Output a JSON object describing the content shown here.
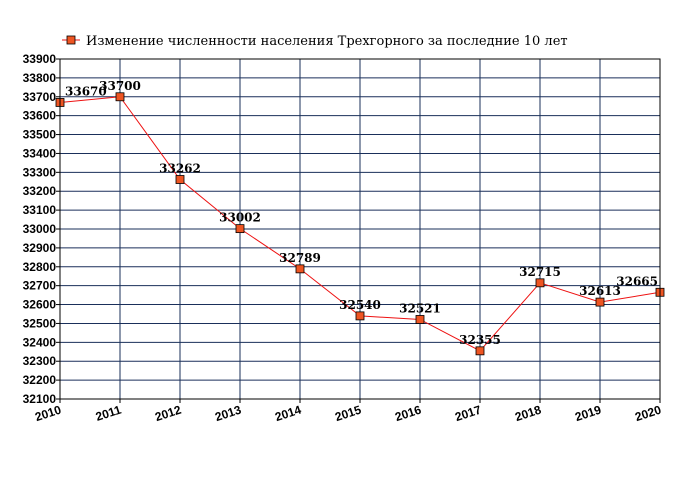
{
  "chart_data": {
    "type": "line",
    "legend": "Изменение численности населения Трехгорного за последние 10 лет",
    "legend_position": "top-left",
    "grid": true,
    "x": [
      "2010",
      "2011",
      "2012",
      "2013",
      "2014",
      "2015",
      "2016",
      "2017",
      "2018",
      "2019",
      "2020"
    ],
    "series": [
      {
        "name": "Изменение численности населения Трехгорного за последние 10 лет",
        "values": [
          33670,
          33700,
          33262,
          33002,
          32789,
          32540,
          32521,
          32355,
          32715,
          32613,
          32665
        ],
        "labels": [
          "33670",
          "33700",
          "33262",
          "33002",
          "32789",
          "32540",
          "32521",
          "32355",
          "32715",
          "32613",
          "32665"
        ]
      }
    ],
    "ylim": [
      32100,
      33900
    ],
    "yticks": [
      "32100",
      "32200",
      "32300",
      "32400",
      "32500",
      "32600",
      "32700",
      "32800",
      "32900",
      "33000",
      "33100",
      "33200",
      "33300",
      "33400",
      "33500",
      "33600",
      "33700",
      "33800",
      "33900"
    ],
    "colors": {
      "line": "#ee1111",
      "marker_fill": "#ee5522",
      "marker_stroke": "#000000",
      "grid": "#1a2f5a"
    }
  }
}
